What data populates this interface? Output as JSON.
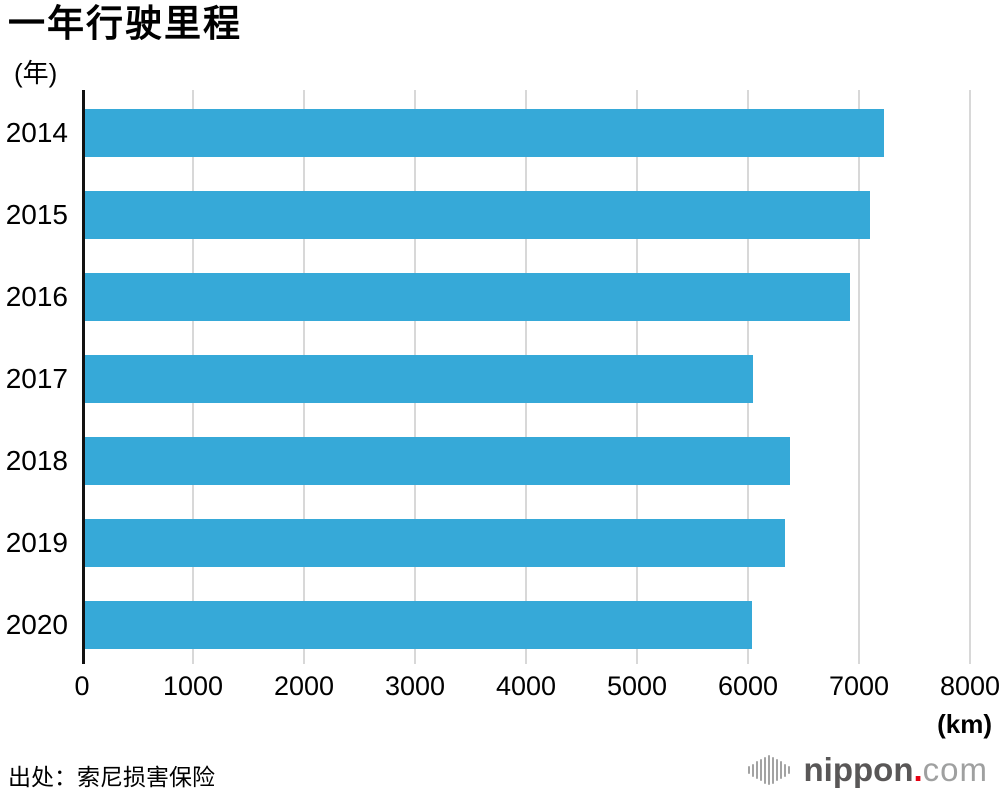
{
  "title": "一年行驶里程",
  "axes": {
    "y_unit": "(年)",
    "x_unit": "(km)"
  },
  "source": "出处：索尼损害保险",
  "logo": {
    "icon": "soundwave-bars",
    "name": "nippon",
    "dot": ".",
    "tld": "com"
  },
  "colors": {
    "bar": "#36a9d8",
    "gridline": "#d8d8d8",
    "axis": "#111111",
    "text": "#000000",
    "logo_name": "#595757",
    "logo_tld": "#9fa0a0",
    "logo_dot": "#e60012",
    "logo_icon": "#a3a3a3"
  },
  "chart_data": {
    "type": "bar",
    "orientation": "horizontal",
    "title": "一年行驶里程",
    "categories": [
      "2014",
      "2015",
      "2016",
      "2017",
      "2018",
      "2019",
      "2020"
    ],
    "values": [
      7200,
      7070,
      6890,
      6020,
      6350,
      6310,
      6010
    ],
    "unit": "km",
    "xlabel": "(km)",
    "ylabel": "(年)",
    "xlim": [
      0,
      8000
    ],
    "xticks": [
      0,
      1000,
      2000,
      3000,
      4000,
      5000,
      6000,
      7000,
      8000
    ],
    "grid": true,
    "legend": false,
    "bar_color": "#36a9d8"
  }
}
